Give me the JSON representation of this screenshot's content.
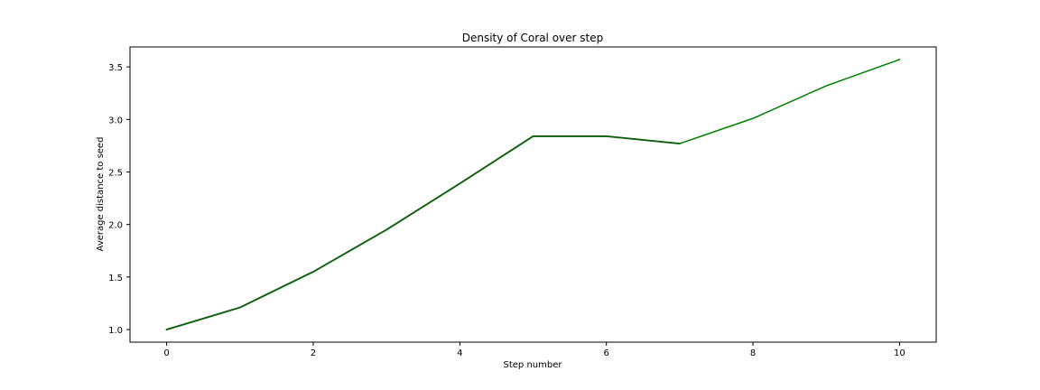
{
  "chart_data": {
    "type": "line",
    "title": "Density of Coral over step",
    "xlabel": "Step number",
    "ylabel": "Average distance to seed",
    "xlim": [
      -0.5,
      10.5
    ],
    "ylim": [
      0.88,
      3.69
    ],
    "xticks": [
      0,
      2,
      4,
      6,
      8,
      10
    ],
    "yticks": [
      1.0,
      1.5,
      2.0,
      2.5,
      3.0,
      3.5
    ],
    "xtick_labels": [
      "0",
      "2",
      "4",
      "6",
      "8",
      "10"
    ],
    "ytick_labels": [
      "1.0",
      "1.5",
      "2.0",
      "2.5",
      "3.0",
      "3.5"
    ],
    "grid": false,
    "colors": {
      "line": "#008000",
      "line_overlap": "#106010",
      "axes": "#000000"
    },
    "series": [
      {
        "x": [
          0,
          1,
          2,
          3,
          4,
          5,
          6,
          7,
          8,
          9,
          10
        ],
        "values": [
          1.0,
          1.21,
          1.55,
          1.95,
          2.39,
          2.84,
          2.84,
          2.77,
          3.01,
          3.32,
          3.57
        ],
        "highlight_until_index": 7
      }
    ]
  }
}
